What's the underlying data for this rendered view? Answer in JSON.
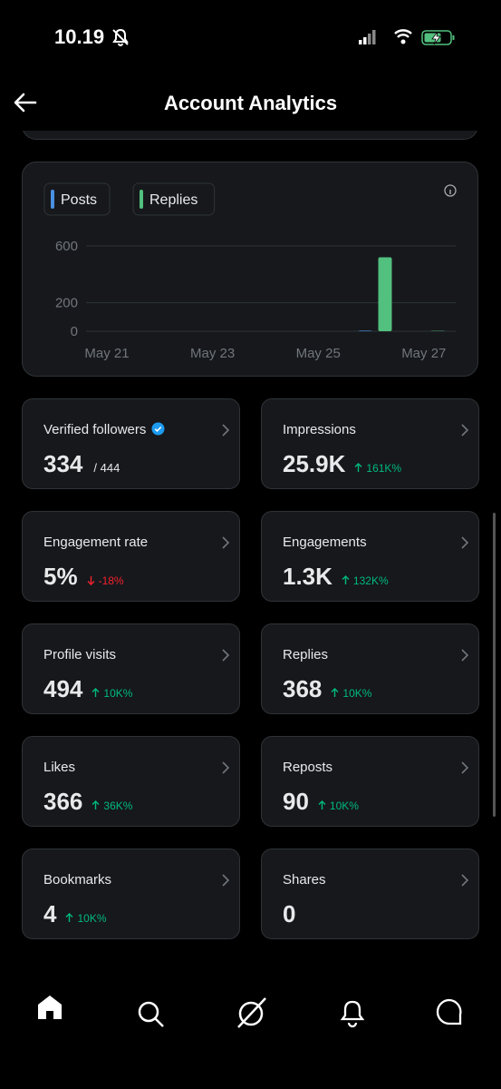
{
  "status_bar": {
    "time": "10.19"
  },
  "header": {
    "title": "Account Analytics"
  },
  "chart_data": {
    "type": "bar",
    "categories": [
      "May 21",
      null,
      "May 23",
      null,
      "May 25",
      null,
      "May 27"
    ],
    "series": [
      {
        "name": "Posts",
        "color": "#4a90e2",
        "values": [
          0,
          0,
          0,
          0,
          0,
          4,
          0
        ]
      },
      {
        "name": "Replies",
        "color": "#52c07e",
        "values": [
          0,
          0,
          0,
          0,
          0,
          520,
          2
        ]
      }
    ],
    "ylim": [
      0,
      600
    ],
    "yticks": [
      0,
      200,
      600
    ],
    "grid": true
  },
  "cards": [
    {
      "label": "Verified followers",
      "value": "334",
      "total": "/ 444",
      "verified": true
    },
    {
      "label": "Impressions",
      "value": "25.9K",
      "change": "161K%",
      "direction": "up"
    },
    {
      "label": "Engagement rate",
      "value": "5%",
      "change": "-18%",
      "direction": "down"
    },
    {
      "label": "Engagements",
      "value": "1.3K",
      "change": "132K%",
      "direction": "up"
    },
    {
      "label": "Profile visits",
      "value": "494",
      "change": "10K%",
      "direction": "up"
    },
    {
      "label": "Replies",
      "value": "368",
      "change": "10K%",
      "direction": "up"
    },
    {
      "label": "Likes",
      "value": "366",
      "change": "36K%",
      "direction": "up"
    },
    {
      "label": "Reposts",
      "value": "90",
      "change": "10K%",
      "direction": "up"
    },
    {
      "label": "Bookmarks",
      "value": "4",
      "change": "10K%",
      "direction": "up"
    },
    {
      "label": "Shares",
      "value": "0"
    }
  ]
}
